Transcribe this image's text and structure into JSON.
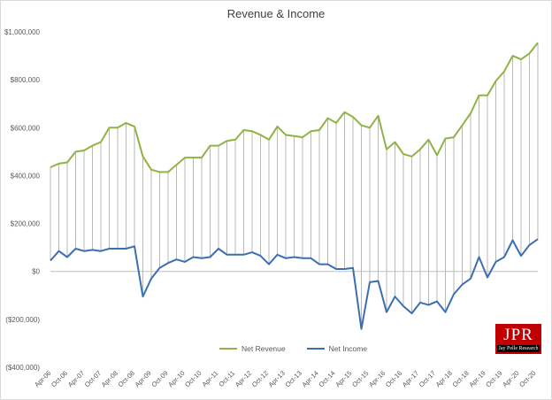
{
  "chart_data": {
    "type": "line",
    "title": "Revenue & Income",
    "xlabel": "",
    "ylabel": "",
    "ylim": [
      -400000,
      1000000
    ],
    "yticks": [
      -400000,
      -200000,
      0,
      200000,
      400000,
      600000,
      800000,
      1000000
    ],
    "ytick_labels": [
      "($400,000)",
      "($200,000)",
      "$0",
      "$200,000",
      "$400,000",
      "$600,000",
      "$800,000",
      "$1,000,000"
    ],
    "xtick_labels": [
      "Apr-06",
      "Oct-06",
      "Apr-07",
      "Oct-07",
      "Apr-08",
      "Oct-08",
      "Apr-09",
      "Oct-09",
      "Apr-10",
      "Oct-10",
      "Apr-11",
      "Oct-11",
      "Apr-12",
      "Oct-12",
      "Apr-13",
      "Oct-13",
      "Apr-14",
      "Oct-14",
      "Apr-15",
      "Oct-15",
      "Apr-16",
      "Oct-16",
      "Apr-17",
      "Oct-17",
      "Apr-18",
      "Oct-18",
      "Apr-19",
      "Oct-19",
      "Apr-20",
      "Oct-20"
    ],
    "grid": "vertical drop lines",
    "legend": "bottom",
    "series": [
      {
        "name": "Net Revenue",
        "color": "#8fb344",
        "values": [
          435000,
          450000,
          455000,
          500000,
          505000,
          525000,
          540000,
          600000,
          600000,
          620000,
          605000,
          480000,
          425000,
          415000,
          415000,
          445000,
          475000,
          475000,
          475000,
          525000,
          525000,
          545000,
          550000,
          590000,
          585000,
          570000,
          550000,
          605000,
          570000,
          565000,
          560000,
          585000,
          590000,
          640000,
          620000,
          665000,
          645000,
          610000,
          600000,
          650000,
          510000,
          540000,
          490000,
          480000,
          510000,
          550000,
          485000,
          555000,
          560000,
          610000,
          660000,
          735000,
          735000,
          795000,
          835000,
          900000,
          885000,
          910000,
          955000
        ]
      },
      {
        "name": "Net Income",
        "color": "#3d6fb0",
        "values": [
          45000,
          85000,
          60000,
          95000,
          85000,
          90000,
          85000,
          95000,
          95000,
          95000,
          105000,
          -105000,
          -30000,
          15000,
          35000,
          50000,
          40000,
          60000,
          55000,
          60000,
          95000,
          70000,
          70000,
          70000,
          80000,
          65000,
          30000,
          70000,
          55000,
          60000,
          55000,
          55000,
          30000,
          30000,
          10000,
          10000,
          15000,
          -240000,
          -45000,
          -40000,
          -170000,
          -105000,
          -145000,
          -175000,
          -130000,
          -140000,
          -125000,
          -170000,
          -95000,
          -55000,
          -30000,
          60000,
          -25000,
          40000,
          60000,
          130000,
          65000,
          110000,
          135000
        ]
      }
    ]
  },
  "logo": {
    "main": "JPR",
    "sub": "Jay Pelle Research"
  }
}
